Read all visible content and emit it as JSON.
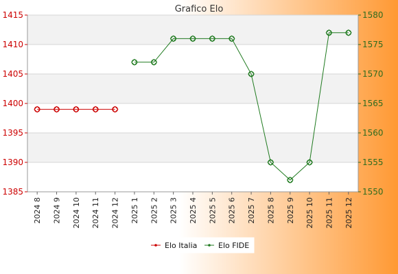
{
  "chart_data": {
    "type": "line",
    "title": "Grafico Elo",
    "categories": [
      "2024 8",
      "2024 9",
      "2024 10",
      "2024 11",
      "2024 12",
      "2025 1",
      "2025 2",
      "2025 3",
      "2025 4",
      "2025 5",
      "2025 6",
      "2025 7",
      "2025 8",
      "2025 9",
      "2025 10",
      "2025 11",
      "2025 12"
    ],
    "series": [
      {
        "name": "Elo Italia",
        "axis": "left",
        "color": "#cc0000",
        "values": [
          1399,
          1399,
          1399,
          1399,
          1399,
          null,
          null,
          null,
          null,
          null,
          null,
          null,
          null,
          null,
          null,
          null,
          null
        ]
      },
      {
        "name": "Elo FIDE",
        "axis": "right",
        "color": "#1f7a1f",
        "values": [
          null,
          null,
          null,
          null,
          null,
          1572,
          1572,
          1576,
          1576,
          1576,
          1576,
          1570,
          1555,
          1552,
          1555,
          1577,
          1577
        ]
      }
    ],
    "y_left": {
      "range": [
        1385,
        1415
      ],
      "ticks": [
        1385,
        1390,
        1395,
        1400,
        1405,
        1410,
        1415
      ],
      "color": "#cc0000"
    },
    "y_right": {
      "range": [
        1550,
        1580
      ],
      "ticks": [
        1550,
        1555,
        1560,
        1565,
        1570,
        1575,
        1580
      ],
      "color": "#2e6b1e"
    },
    "grid": true,
    "legend": {
      "placement": "bottom-center",
      "entries": [
        "Elo Italia",
        "Elo FIDE"
      ]
    },
    "background": {
      "gradient_start": "#ffffff",
      "gradient_end": "#ff9933",
      "plot_band": "#f2f2f2",
      "plot_fill": "#ffffff"
    }
  }
}
